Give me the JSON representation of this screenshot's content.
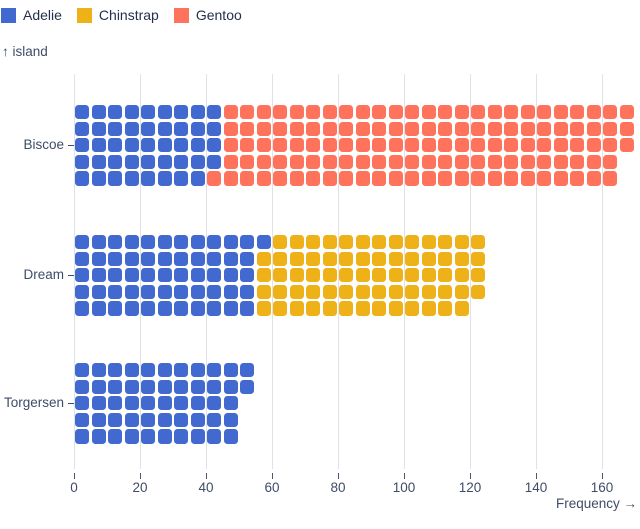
{
  "legend": {
    "items": [
      {
        "label": "Adelie",
        "color": "#4269d0"
      },
      {
        "label": "Chinstrap",
        "color": "#efb118"
      },
      {
        "label": "Gentoo",
        "color": "#ff725c"
      }
    ]
  },
  "y_axis": {
    "label": "↑ island",
    "categories": [
      "Biscoe",
      "Dream",
      "Torgersen"
    ]
  },
  "x_axis": {
    "label": "Frequency →",
    "ticks": [
      0,
      20,
      40,
      60,
      80,
      100,
      120,
      140,
      160
    ]
  },
  "chart_data": {
    "type": "bar",
    "variant": "waffle-unit-chart",
    "orientation": "horizontal",
    "title": "",
    "xlabel": "Frequency",
    "ylabel": "island",
    "categories": [
      "Biscoe",
      "Dream",
      "Torgersen"
    ],
    "series": [
      {
        "name": "Adelie",
        "color": "#4269d0",
        "values": [
          44,
          56,
          52
        ]
      },
      {
        "name": "Chinstrap",
        "color": "#efb118",
        "values": [
          0,
          68,
          0
        ]
      },
      {
        "name": "Gentoo",
        "color": "#ff725c",
        "values": [
          124,
          0,
          0
        ]
      }
    ],
    "totals": [
      168,
      124,
      52
    ],
    "xlim": [
      0,
      170
    ],
    "x_ticks": [
      0,
      20,
      40,
      60,
      80,
      100,
      120,
      140,
      160
    ],
    "rows_per_band": 5,
    "units_per_cell": 1,
    "grid": true,
    "legend_position": "top-left"
  },
  "colors": {
    "grid": "#dfe2e6",
    "tick": "#4a5770",
    "axis_text": "#3f4c66",
    "legend_text": "#25304d",
    "background": "#ffffff"
  }
}
